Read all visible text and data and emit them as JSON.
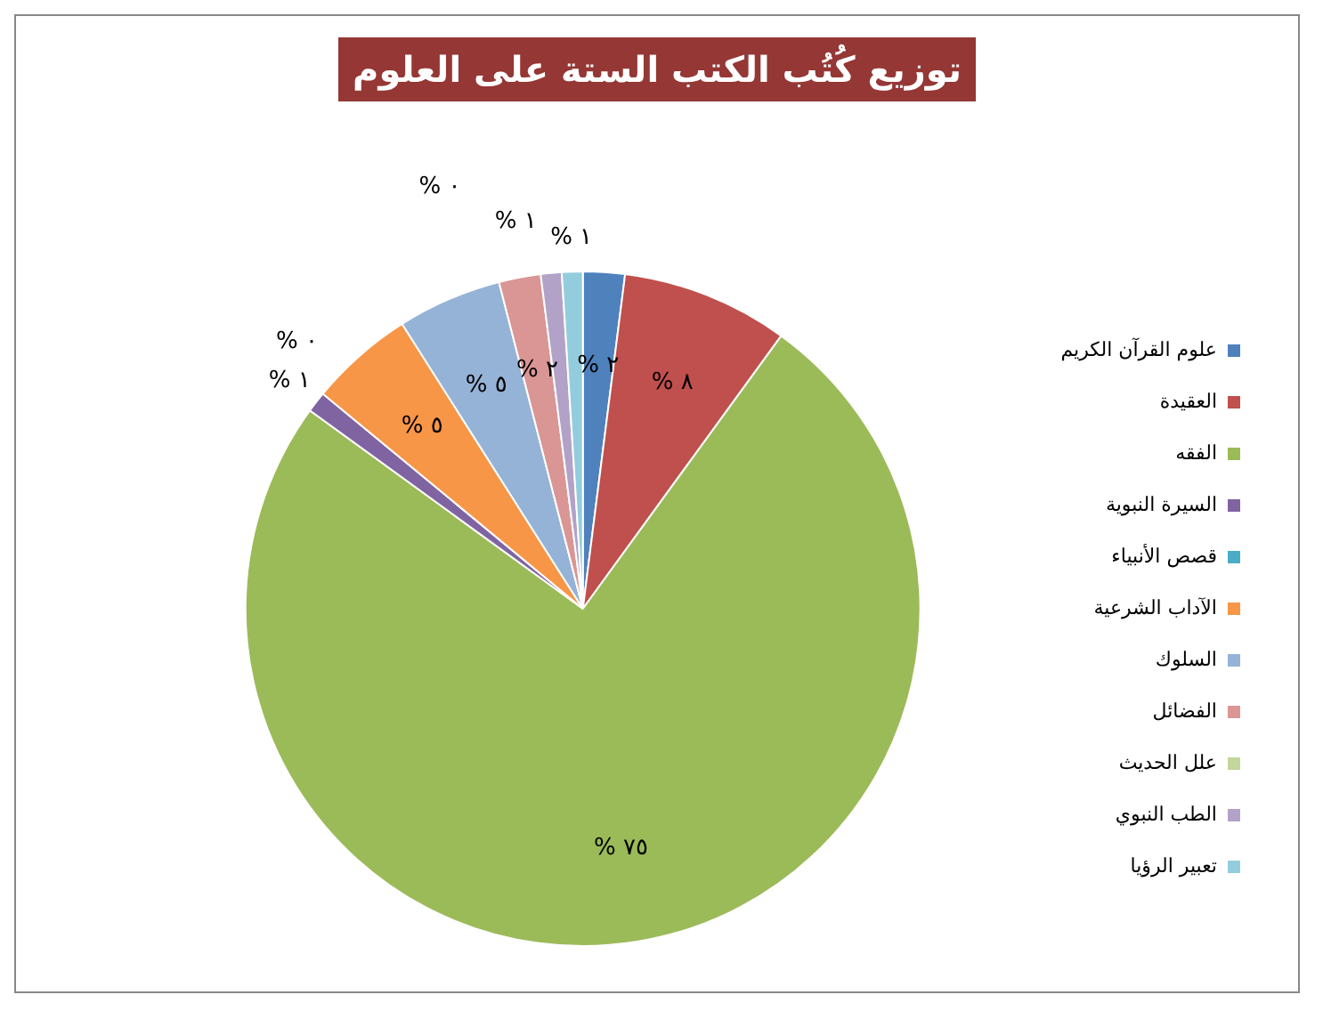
{
  "chart_data": {
    "type": "pie",
    "title": "توزيع كُتُب الكتب الستة على العلوم",
    "categories": [
      "علوم القرآن الكريم",
      "العقيدة",
      "الفقه",
      "السيرة النبوية",
      "قصص الأنبياء",
      "الآداب الشرعية",
      "السلوك",
      "الفضائل",
      "علل الحديث",
      "الطب النبوي",
      "تعبير الرؤيا"
    ],
    "values": [
      2,
      8,
      75,
      1,
      0,
      5,
      5,
      2,
      0,
      1,
      1
    ],
    "value_labels": [
      "% ٢",
      "% ٨",
      "% ٧٥",
      "% ١",
      "% ٠",
      "% ٥",
      "% ٥",
      "% ٢",
      "% ٠",
      "% ١",
      "% ١"
    ],
    "colors": [
      "#4f81bd",
      "#c0504d",
      "#9bbb59",
      "#8064a2",
      "#4bacc6",
      "#f79646",
      "#95b3d7",
      "#d99694",
      "#c3d69b",
      "#b3a2c7",
      "#93cddd"
    ],
    "legend": "right"
  }
}
